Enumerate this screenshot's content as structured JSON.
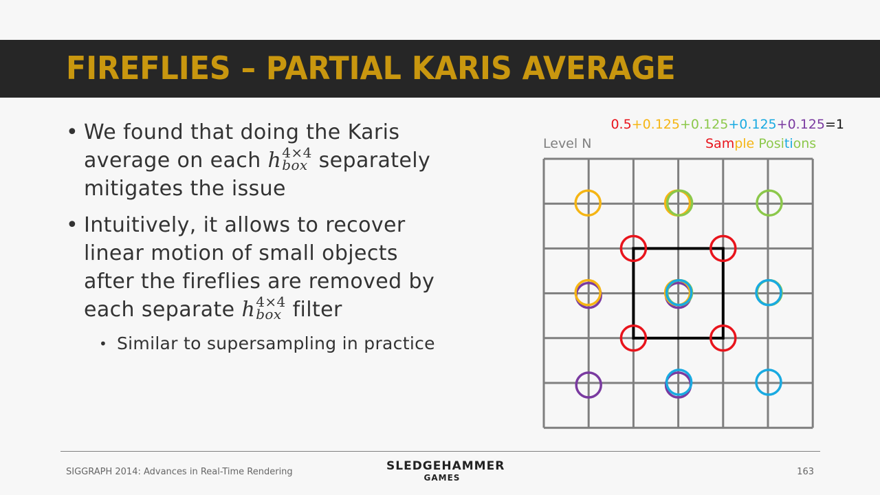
{
  "slide": {
    "title": "FIREFLIES – PARTIAL KARIS AVERAGE"
  },
  "bullets": {
    "b1": {
      "pre": "We found that doing the Karis average on each ",
      "post": " separately mitigates the issue"
    },
    "b2": {
      "pre": "Intuitively, it allows to recover linear motion of small objects after the fireflies are removed by each separate ",
      "post": " filter"
    },
    "b3": {
      "text": "Similar to supersampling in practice"
    },
    "math": {
      "base": "h",
      "sup": "4×4",
      "sub": "box"
    }
  },
  "diagram": {
    "level_label": "Level N",
    "equation": [
      {
        "text": "0.5",
        "color": "#e8141c"
      },
      {
        "text": "+0.125",
        "color": "#f5b514"
      },
      {
        "text": "+0.125",
        "color": "#8cc84b"
      },
      {
        "text": "+0.125",
        "color": "#19aae1"
      },
      {
        "text": "+0.125",
        "color": "#7a3aa0"
      },
      {
        "text": "=1",
        "color": "#111111"
      }
    ],
    "sample_label": [
      {
        "text": "Sam",
        "color": "#e8141c"
      },
      {
        "text": "ple ",
        "color": "#f5b514"
      },
      {
        "text": "Posi",
        "color": "#8cc84b"
      },
      {
        "text": "ti",
        "color": "#19aae1"
      },
      {
        "text": "ons",
        "color": "#8cc84b"
      }
    ],
    "grid": {
      "cells": 6
    },
    "colors": {
      "red": "#e8141c",
      "yellow": "#f5b514",
      "green": "#8cc84b",
      "blue": "#19aae1",
      "purple": "#7a3aa0",
      "grid": "#7f7f7f",
      "box": "#000000"
    },
    "samples": [
      {
        "gx": 1,
        "gy": 1,
        "color": "yellow"
      },
      {
        "gx": 3,
        "gy": 1,
        "color": "yellow"
      },
      {
        "gx": 3,
        "gy": 1,
        "color": "green"
      },
      {
        "gx": 5,
        "gy": 1,
        "color": "green"
      },
      {
        "gx": 1,
        "gy": 3,
        "color": "purple"
      },
      {
        "gx": 1,
        "gy": 3,
        "color": "yellow"
      },
      {
        "gx": 3,
        "gy": 3,
        "color": "purple"
      },
      {
        "gx": 3,
        "gy": 3,
        "color": "yellow"
      },
      {
        "gx": 3,
        "gy": 3,
        "color": "green"
      },
      {
        "gx": 3,
        "gy": 3,
        "color": "blue"
      },
      {
        "gx": 5,
        "gy": 3,
        "color": "green"
      },
      {
        "gx": 5,
        "gy": 3,
        "color": "blue"
      },
      {
        "gx": 1,
        "gy": 5,
        "color": "purple"
      },
      {
        "gx": 3,
        "gy": 5,
        "color": "purple"
      },
      {
        "gx": 3,
        "gy": 5,
        "color": "blue"
      },
      {
        "gx": 5,
        "gy": 5,
        "color": "blue"
      },
      {
        "gx": 2,
        "gy": 2,
        "color": "red"
      },
      {
        "gx": 4,
        "gy": 2,
        "color": "red"
      },
      {
        "gx": 2,
        "gy": 4,
        "color": "red"
      },
      {
        "gx": 4,
        "gy": 4,
        "color": "red"
      }
    ],
    "box": {
      "gx0": 2,
      "gy0": 2,
      "gx1": 4,
      "gy1": 4
    }
  },
  "footer": {
    "left": "SIGGRAPH 2014: Advances in Real-Time Rendering",
    "logo_line1": "SLEDGEHAMMER",
    "logo_line2": "GAMES",
    "page": "163"
  }
}
